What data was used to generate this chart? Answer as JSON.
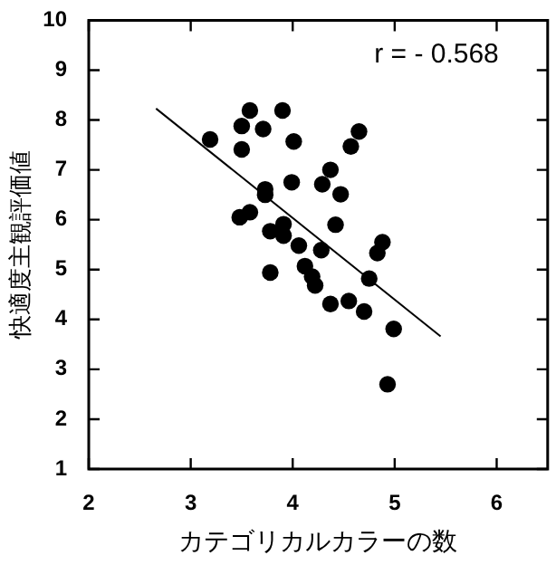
{
  "chart_data": {
    "type": "scatter",
    "xlabel": "カテゴリカルカラーの数",
    "ylabel": "快適度主観評価値",
    "annotations": [
      "r = - 0.568"
    ],
    "xlim": [
      2,
      6.5
    ],
    "xticks": [
      2,
      3,
      4,
      5,
      6
    ],
    "ylim": [
      1,
      10
    ],
    "yticks": [
      1,
      2,
      3,
      4,
      5,
      6,
      7,
      8,
      9,
      10
    ],
    "grid": false,
    "legend": false,
    "series": [
      {
        "marker": "circle",
        "color": "#000000",
        "x": [
          3.19,
          3.58,
          3.5,
          3.71,
          3.9,
          4.01,
          3.5,
          4.65,
          4.57,
          4.37,
          3.99,
          4.29,
          4.47,
          3.73,
          3.73,
          3.58,
          3.48,
          3.91,
          3.78,
          3.91,
          4.42,
          4.06,
          4.28,
          4.88,
          4.83,
          3.78,
          4.12,
          4.19,
          4.22,
          4.75,
          4.37,
          4.55,
          4.7,
          4.99,
          4.93
        ],
        "values": [
          7.61,
          8.19,
          7.88,
          7.82,
          8.19,
          7.57,
          7.41,
          7.77,
          7.47,
          7.0,
          6.75,
          6.71,
          6.51,
          6.61,
          6.5,
          6.15,
          6.05,
          5.91,
          5.77,
          5.68,
          5.9,
          5.48,
          5.39,
          5.55,
          5.33,
          4.94,
          5.07,
          4.86,
          4.68,
          4.82,
          4.31,
          4.37,
          4.16,
          3.81,
          2.7
        ]
      },
      {
        "type": "line",
        "marker": "none",
        "color": "#000000",
        "x": [
          2.66,
          5.45
        ],
        "values": [
          8.23,
          3.66
        ]
      }
    ]
  }
}
